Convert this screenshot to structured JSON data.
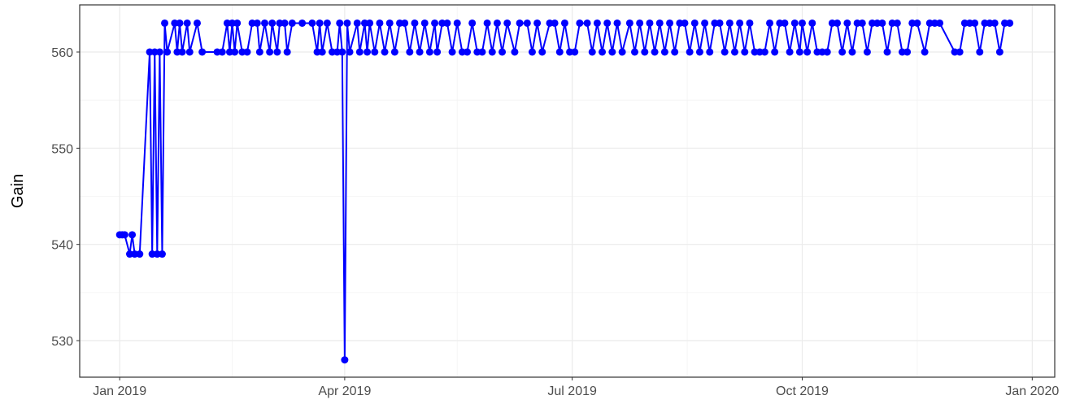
{
  "chart_data": {
    "type": "line",
    "ylabel": "Gain",
    "x": [
      "2019-01-01",
      "2019-01-02",
      "2019-01-03",
      "2019-01-05",
      "2019-01-06",
      "2019-01-07",
      "2019-01-09",
      "2019-01-13",
      "2019-01-14",
      "2019-01-15",
      "2019-01-16",
      "2019-01-17",
      "2019-01-18",
      "2019-01-19",
      "2019-01-20",
      "2019-01-23",
      "2019-01-24",
      "2019-01-25",
      "2019-01-26",
      "2019-01-28",
      "2019-01-29",
      "2019-02-01",
      "2019-02-03",
      "2019-02-09",
      "2019-02-11",
      "2019-02-13",
      "2019-02-14",
      "2019-02-15",
      "2019-02-16",
      "2019-02-17",
      "2019-02-19",
      "2019-02-21",
      "2019-02-23",
      "2019-02-25",
      "2019-02-26",
      "2019-02-28",
      "2019-03-02",
      "2019-03-03",
      "2019-03-05",
      "2019-03-06",
      "2019-03-08",
      "2019-03-09",
      "2019-03-11",
      "2019-03-15",
      "2019-03-19",
      "2019-03-21",
      "2019-03-22",
      "2019-03-23",
      "2019-03-25",
      "2019-03-27",
      "2019-03-29",
      "2019-03-30",
      "2019-03-31",
      "2019-04-01",
      "2019-04-02",
      "2019-04-03",
      "2019-04-06",
      "2019-04-07",
      "2019-04-09",
      "2019-04-10",
      "2019-04-11",
      "2019-04-13",
      "2019-04-15",
      "2019-04-17",
      "2019-04-19",
      "2019-04-21",
      "2019-04-23",
      "2019-04-25",
      "2019-04-27",
      "2019-04-29",
      "2019-05-01",
      "2019-05-03",
      "2019-05-05",
      "2019-05-07",
      "2019-05-08",
      "2019-05-10",
      "2019-05-12",
      "2019-05-14",
      "2019-05-16",
      "2019-05-18",
      "2019-05-20",
      "2019-05-22",
      "2019-05-24",
      "2019-05-26",
      "2019-05-28",
      "2019-05-30",
      "2019-06-01",
      "2019-06-03",
      "2019-06-05",
      "2019-06-08",
      "2019-06-10",
      "2019-06-13",
      "2019-06-15",
      "2019-06-17",
      "2019-06-19",
      "2019-06-22",
      "2019-06-24",
      "2019-06-26",
      "2019-06-28",
      "2019-06-30",
      "2019-07-02",
      "2019-07-04",
      "2019-07-07",
      "2019-07-09",
      "2019-07-11",
      "2019-07-13",
      "2019-07-15",
      "2019-07-17",
      "2019-07-19",
      "2019-07-21",
      "2019-07-24",
      "2019-07-26",
      "2019-07-28",
      "2019-07-30",
      "2019-08-01",
      "2019-08-03",
      "2019-08-05",
      "2019-08-07",
      "2019-08-09",
      "2019-08-11",
      "2019-08-13",
      "2019-08-15",
      "2019-08-17",
      "2019-08-19",
      "2019-08-21",
      "2019-08-23",
      "2019-08-25",
      "2019-08-27",
      "2019-08-29",
      "2019-08-31",
      "2019-09-02",
      "2019-09-04",
      "2019-09-06",
      "2019-09-08",
      "2019-09-10",
      "2019-09-12",
      "2019-09-14",
      "2019-09-16",
      "2019-09-18",
      "2019-09-20",
      "2019-09-22",
      "2019-09-24",
      "2019-09-26",
      "2019-09-28",
      "2019-09-30",
      "2019-10-01",
      "2019-10-03",
      "2019-10-05",
      "2019-10-07",
      "2019-10-09",
      "2019-10-11",
      "2019-10-13",
      "2019-10-15",
      "2019-10-17",
      "2019-10-19",
      "2019-10-21",
      "2019-10-23",
      "2019-10-25",
      "2019-10-27",
      "2019-10-29",
      "2019-10-31",
      "2019-11-02",
      "2019-11-04",
      "2019-11-06",
      "2019-11-08",
      "2019-11-10",
      "2019-11-12",
      "2019-11-14",
      "2019-11-16",
      "2019-11-19",
      "2019-11-21",
      "2019-11-23",
      "2019-11-25",
      "2019-12-01",
      "2019-12-03",
      "2019-12-05",
      "2019-12-07",
      "2019-12-09",
      "2019-12-11",
      "2019-12-13",
      "2019-12-15",
      "2019-12-17",
      "2019-12-19",
      "2019-12-21",
      "2019-12-23"
    ],
    "series": [
      {
        "color": "#0000ff",
        "values": [
          541,
          541,
          541,
          539,
          541,
          539,
          539,
          560,
          539,
          560,
          539,
          560,
          539,
          563,
          560,
          563,
          560,
          563,
          560,
          563,
          560,
          563,
          560,
          560,
          560,
          563,
          560,
          563,
          560,
          563,
          560,
          560,
          563,
          563,
          560,
          563,
          560,
          563,
          560,
          563,
          563,
          560,
          563,
          563,
          563,
          560,
          563,
          560,
          563,
          560,
          560,
          563,
          560,
          528,
          563,
          560,
          563,
          560,
          563,
          560,
          563,
          560,
          563,
          560,
          563,
          560,
          563,
          563,
          560,
          563,
          560,
          563,
          560,
          563,
          560,
          563,
          563,
          560,
          563,
          560,
          560,
          563,
          560,
          560,
          563,
          560,
          563,
          560,
          563,
          560,
          563,
          563,
          560,
          563,
          560,
          563,
          563,
          560,
          563,
          560,
          560,
          563,
          563,
          560,
          563,
          560,
          563,
          560,
          563,
          560,
          563,
          560,
          563,
          560,
          563,
          560,
          563,
          560,
          563,
          560,
          563,
          563,
          560,
          563,
          560,
          563,
          560,
          563,
          563,
          560,
          563,
          560,
          563,
          560,
          563,
          560,
          560,
          560,
          563,
          560,
          563,
          563,
          560,
          563,
          560,
          563,
          560,
          563,
          560,
          560,
          560,
          563,
          563,
          560,
          563,
          560,
          563,
          563,
          560,
          563,
          563,
          563,
          560,
          563,
          563,
          560,
          560,
          563,
          563,
          560,
          563,
          563,
          563,
          560,
          560,
          563,
          563,
          563,
          560,
          563,
          563,
          563,
          560,
          563,
          563
        ]
      }
    ],
    "xlim": [
      "2018-12-16",
      "2020-01-10"
    ],
    "xticks": [
      {
        "value": "2019-01-01",
        "label": "Jan 2019"
      },
      {
        "value": "2019-04-01",
        "label": "Apr 2019"
      },
      {
        "value": "2019-07-01",
        "label": "Jul 2019"
      },
      {
        "value": "2019-10-01",
        "label": "Oct 2019"
      },
      {
        "value": "2020-01-01",
        "label": "Jan 2020"
      }
    ],
    "xminor": [
      "2019-02-15",
      "2019-05-16",
      "2019-08-16",
      "2019-11-16"
    ],
    "ylim": [
      526.2,
      564.9
    ],
    "yticks": [
      530,
      540,
      550,
      560
    ],
    "yminor": [
      535,
      545,
      555
    ],
    "grid": true
  }
}
